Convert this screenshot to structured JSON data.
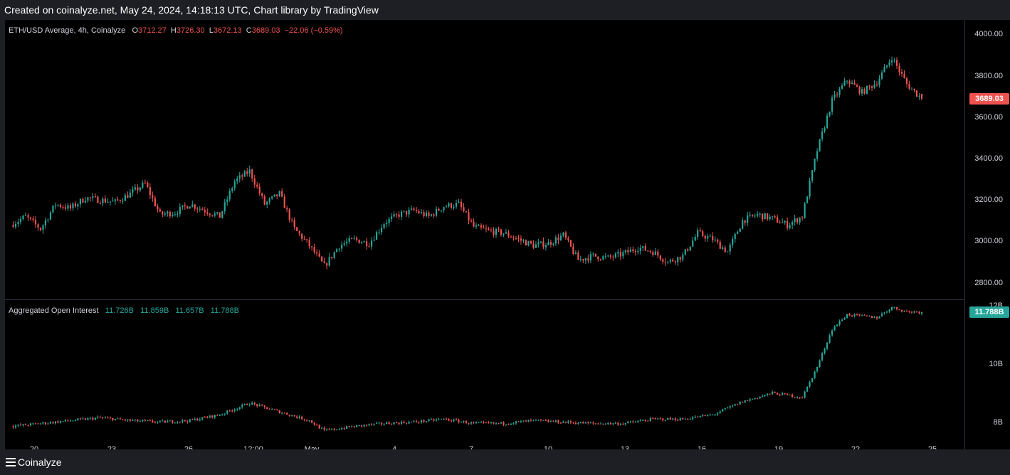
{
  "header": {
    "caption": "Created on coinalyze.net, May 24, 2024, 14:18:13 UTC, Chart library by TradingView"
  },
  "footer": {
    "brand": "Coinalyze"
  },
  "price_pane": {
    "symbol": "ETH/USD Average, 4h, Coinalyze",
    "o_label": "O",
    "o_value": "3712.27",
    "h_label": "H",
    "h_value": "3726.30",
    "l_label": "L",
    "l_value": "3672.13",
    "c_label": "C",
    "c_value": "3689.03",
    "change": "−22.06 (−0.59%)",
    "last_price_tag": "3689.03",
    "y_ticks": [
      "4000.00",
      "3800.00",
      "3600.00",
      "3400.00",
      "3200.00",
      "3000.00",
      "2800.00"
    ]
  },
  "oi_pane": {
    "name": "Aggregated Open Interest",
    "v1": "11.726B",
    "v2": "11.859B",
    "v3": "11.657B",
    "v4": "11.788B",
    "last_value_tag": "11.788B",
    "y_ticks": [
      "12B",
      "10B",
      "8B"
    ]
  },
  "x_ticks": [
    "20",
    "23",
    "26",
    "12:00",
    "May",
    "4",
    "7",
    "10",
    "13",
    "16",
    "19",
    "22",
    "25"
  ],
  "colors": {
    "up": "#26a69a",
    "down": "#ef5350",
    "background": "#000000",
    "frame": "#1e1f24"
  },
  "chart_data": [
    {
      "type": "candlestick",
      "title": "ETH/USD Average, 4h, Coinalyze",
      "ylim": [
        2720,
        4070
      ],
      "y_ticks": [
        4000,
        3800,
        3600,
        3400,
        3200,
        3000,
        2800
      ],
      "x_ticks": [
        "20",
        "23",
        "26",
        "12:00",
        "May",
        "4",
        "7",
        "10",
        "13",
        "16",
        "19",
        "22",
        "25"
      ],
      "last": {
        "open": 3712.27,
        "high": 3726.3,
        "low": 3672.13,
        "close": 3689.03,
        "change": -22.06,
        "change_pct": -0.59
      },
      "close_path": [
        {
          "day": 0,
          "close": 3080
        },
        {
          "day": 1,
          "close": 3120
        },
        {
          "day": 2,
          "close": 3060
        },
        {
          "day": 3,
          "close": 3180
        },
        {
          "day": 4,
          "close": 3160
        },
        {
          "day": 5,
          "close": 3210
        },
        {
          "day": 6,
          "close": 3200
        },
        {
          "day": 7,
          "close": 3190
        },
        {
          "day": 8,
          "close": 3230
        },
        {
          "day": 9,
          "close": 3280
        },
        {
          "day": 10,
          "close": 3130
        },
        {
          "day": 11,
          "close": 3140
        },
        {
          "day": 12,
          "close": 3180
        },
        {
          "day": 13,
          "close": 3150
        },
        {
          "day": 14,
          "close": 3120
        },
        {
          "day": 15,
          "close": 3290
        },
        {
          "day": 16,
          "close": 3340
        },
        {
          "day": 17,
          "close": 3180
        },
        {
          "day": 18,
          "close": 3230
        },
        {
          "day": 19,
          "close": 3060
        },
        {
          "day": 20,
          "close": 2980
        },
        {
          "day": 21,
          "close": 2880
        },
        {
          "day": 22,
          "close": 2980
        },
        {
          "day": 23,
          "close": 3010
        },
        {
          "day": 24,
          "close": 2990
        },
        {
          "day": 25,
          "close": 3090
        },
        {
          "day": 26,
          "close": 3130
        },
        {
          "day": 27,
          "close": 3150
        },
        {
          "day": 28,
          "close": 3120
        },
        {
          "day": 29,
          "close": 3170
        },
        {
          "day": 30,
          "close": 3180
        },
        {
          "day": 31,
          "close": 3070
        },
        {
          "day": 32,
          "close": 3050
        },
        {
          "day": 33,
          "close": 3040
        },
        {
          "day": 34,
          "close": 3010
        },
        {
          "day": 35,
          "close": 2980
        },
        {
          "day": 36,
          "close": 2990
        },
        {
          "day": 37,
          "close": 3030
        },
        {
          "day": 38,
          "close": 2910
        },
        {
          "day": 39,
          "close": 2930
        },
        {
          "day": 40,
          "close": 2920
        },
        {
          "day": 41,
          "close": 2940
        },
        {
          "day": 42,
          "close": 2970
        },
        {
          "day": 43,
          "close": 2950
        },
        {
          "day": 44,
          "close": 2900
        },
        {
          "day": 45,
          "close": 2930
        },
        {
          "day": 46,
          "close": 3040
        },
        {
          "day": 47,
          "close": 3010
        },
        {
          "day": 48,
          "close": 2950
        },
        {
          "day": 49,
          "close": 3100
        },
        {
          "day": 50,
          "close": 3130
        },
        {
          "day": 51,
          "close": 3110
        },
        {
          "day": 52,
          "close": 3080
        },
        {
          "day": 53,
          "close": 3120
        },
        {
          "day": 54,
          "close": 3440
        },
        {
          "day": 55,
          "close": 3680
        },
        {
          "day": 56,
          "close": 3780
        },
        {
          "day": 57,
          "close": 3720
        },
        {
          "day": 58,
          "close": 3770
        },
        {
          "day": 59,
          "close": 3890
        },
        {
          "day": 60,
          "close": 3760
        },
        {
          "day": 61,
          "close": 3689
        }
      ]
    },
    {
      "type": "candlestick",
      "title": "Aggregated Open Interest",
      "ylim": [
        7.4,
        12.2
      ],
      "y_ticks": [
        12,
        10,
        8
      ],
      "y_unit": "B",
      "x_ticks": [
        "20",
        "23",
        "26",
        "12:00",
        "May",
        "4",
        "7",
        "10",
        "13",
        "16",
        "19",
        "22",
        "25"
      ],
      "last": {
        "open": 11.726,
        "high": 11.859,
        "low": 11.657,
        "close": 11.788
      },
      "close_path": [
        {
          "day": 0,
          "close": 7.85
        },
        {
          "day": 2,
          "close": 7.95
        },
        {
          "day": 4,
          "close": 8.05
        },
        {
          "day": 6,
          "close": 8.15
        },
        {
          "day": 8,
          "close": 8.05
        },
        {
          "day": 10,
          "close": 8.0
        },
        {
          "day": 12,
          "close": 8.05
        },
        {
          "day": 14,
          "close": 8.25
        },
        {
          "day": 16,
          "close": 8.65
        },
        {
          "day": 18,
          "close": 8.35
        },
        {
          "day": 20,
          "close": 8.05
        },
        {
          "day": 21,
          "close": 7.7
        },
        {
          "day": 23,
          "close": 7.85
        },
        {
          "day": 25,
          "close": 7.95
        },
        {
          "day": 27,
          "close": 8.0
        },
        {
          "day": 29,
          "close": 8.1
        },
        {
          "day": 31,
          "close": 7.95
        },
        {
          "day": 33,
          "close": 7.95
        },
        {
          "day": 35,
          "close": 8.05
        },
        {
          "day": 37,
          "close": 8.0
        },
        {
          "day": 39,
          "close": 7.95
        },
        {
          "day": 41,
          "close": 7.95
        },
        {
          "day": 43,
          "close": 8.1
        },
        {
          "day": 45,
          "close": 8.1
        },
        {
          "day": 47,
          "close": 8.25
        },
        {
          "day": 49,
          "close": 8.7
        },
        {
          "day": 51,
          "close": 9.0
        },
        {
          "day": 53,
          "close": 8.85
        },
        {
          "day": 54,
          "close": 9.9
        },
        {
          "day": 55,
          "close": 11.2
        },
        {
          "day": 56,
          "close": 11.7
        },
        {
          "day": 58,
          "close": 11.6
        },
        {
          "day": 59,
          "close": 11.95
        },
        {
          "day": 60,
          "close": 11.8
        },
        {
          "day": 61,
          "close": 11.788
        }
      ]
    }
  ]
}
